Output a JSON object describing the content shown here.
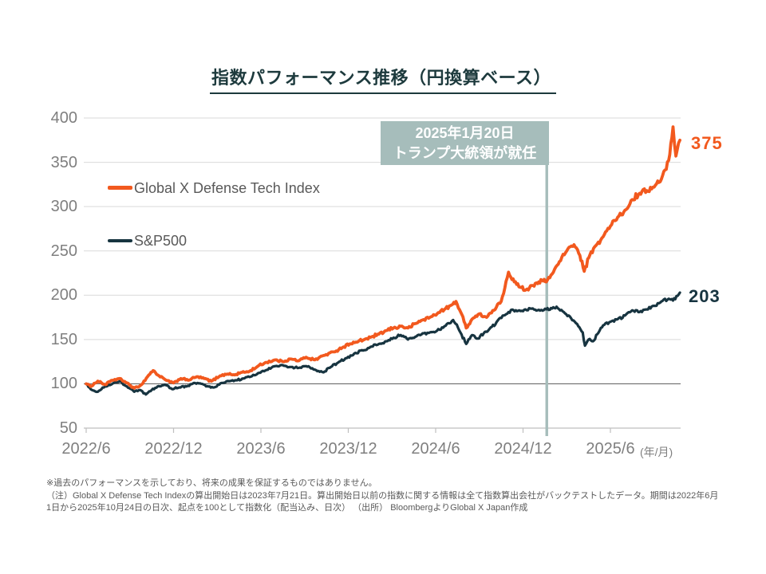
{
  "title": {
    "text": "指数パフォーマンス推移（円換算ベース）"
  },
  "legend": {
    "items": [
      {
        "label": "Global X Defense Tech Index",
        "color": "#F2591E"
      },
      {
        "label": "S&P500",
        "color": "#173440"
      }
    ]
  },
  "annotation": {
    "line1": "2025年1月20日",
    "line2": "トランプ大統領が就任"
  },
  "x_axis_unit": "(年/月)",
  "footnotes": [
    "※過去のパフォーマンスを示しており、将来の成果を保証するものではありません。",
    "（注）Global X Defense Tech Indexの算出開始日は2023年7月21日。算出開始日以前の指数に関する情報は全て指数算出会社がバックテストしたデータ。期間は2022年6月",
    "1日から2025年10月24日の日次、起点を100として指数化（配当込み、日次） （出所） BloombergよりGlobal X Japan作成"
  ],
  "colors": {
    "accent_orange": "#F2591E",
    "navy": "#173440",
    "title_teal": "#1D3A3D",
    "annotation_bg": "#A6BDBB",
    "gridline": "#D9D9D9",
    "axis": "#BFBFBF",
    "baseline": "#6B6B6B",
    "tick_label": "#7F7F7F",
    "text_gray": "#595959"
  },
  "chart_data": {
    "type": "line",
    "title": "指数パフォーマンス推移（円換算ベース）",
    "x_unit": "months since 2022/6 (daily series, 2022/6/1 - 2025/10/24, indexed to 100)",
    "x_ticks": [
      {
        "t": 0,
        "label": "2022/6"
      },
      {
        "t": 6,
        "label": "2022/12"
      },
      {
        "t": 12,
        "label": "2023/6"
      },
      {
        "t": 18,
        "label": "2023/12"
      },
      {
        "t": 24,
        "label": "2024/6"
      },
      {
        "t": 30,
        "label": "2024/12"
      },
      {
        "t": 36,
        "label": "2025/6"
      }
    ],
    "ylim": [
      50,
      400
    ],
    "yticks": [
      400,
      350,
      300,
      250,
      200,
      150,
      100,
      50
    ],
    "baseline_value": 100,
    "grid": true,
    "legend_position": "inside-top-left",
    "event_line": {
      "t": 31.63,
      "date": "2025/1/20",
      "label": "2025年1月20日 トランプ大統領が就任"
    },
    "series": [
      {
        "name": "Global X Defense Tech Index",
        "color": "#F2591E",
        "end_label": "375",
        "points": [
          [
            0,
            100
          ],
          [
            0.3,
            97
          ],
          [
            0.8,
            103
          ],
          [
            1.3,
            99
          ],
          [
            1.8,
            104
          ],
          [
            2.3,
            106
          ],
          [
            2.8,
            101
          ],
          [
            3.3,
            95
          ],
          [
            3.8,
            99
          ],
          [
            4.3,
            110
          ],
          [
            4.6,
            115
          ],
          [
            5.0,
            109
          ],
          [
            5.5,
            104
          ],
          [
            6.0,
            101
          ],
          [
            6.5,
            106
          ],
          [
            7.0,
            104
          ],
          [
            7.6,
            108
          ],
          [
            8.1,
            106
          ],
          [
            8.6,
            103
          ],
          [
            9.2,
            109
          ],
          [
            9.7,
            111
          ],
          [
            10.2,
            110
          ],
          [
            10.7,
            113
          ],
          [
            11.2,
            114
          ],
          [
            11.8,
            120
          ],
          [
            12.3,
            124
          ],
          [
            13.0,
            127
          ],
          [
            13.5,
            125
          ],
          [
            14.0,
            128
          ],
          [
            14.6,
            126
          ],
          [
            15.1,
            130
          ],
          [
            15.7,
            127
          ],
          [
            16.3,
            132
          ],
          [
            17.0,
            136
          ],
          [
            17.6,
            141
          ],
          [
            18.1,
            145
          ],
          [
            18.6,
            147
          ],
          [
            19.1,
            150
          ],
          [
            19.6,
            153
          ],
          [
            20.1,
            156
          ],
          [
            20.6,
            160
          ],
          [
            21.1,
            163
          ],
          [
            21.6,
            165
          ],
          [
            22.1,
            163
          ],
          [
            22.6,
            168
          ],
          [
            23.1,
            172
          ],
          [
            23.6,
            175
          ],
          [
            24.1,
            179
          ],
          [
            24.6,
            184
          ],
          [
            25.1,
            189
          ],
          [
            25.4,
            193
          ],
          [
            25.8,
            178
          ],
          [
            26.1,
            163
          ],
          [
            26.5,
            173
          ],
          [
            27.0,
            179
          ],
          [
            27.5,
            175
          ],
          [
            28.0,
            183
          ],
          [
            28.5,
            193
          ],
          [
            29.0,
            226
          ],
          [
            29.4,
            215
          ],
          [
            29.8,
            209
          ],
          [
            30.2,
            206
          ],
          [
            30.6,
            211
          ],
          [
            31.0,
            213
          ],
          [
            31.3,
            217
          ],
          [
            31.6,
            215
          ],
          [
            32.0,
            224
          ],
          [
            32.5,
            238
          ],
          [
            33.0,
            250
          ],
          [
            33.5,
            257
          ],
          [
            33.9,
            245
          ],
          [
            34.2,
            227
          ],
          [
            34.6,
            246
          ],
          [
            35.0,
            256
          ],
          [
            35.5,
            266
          ],
          [
            36.0,
            278
          ],
          [
            36.5,
            288
          ],
          [
            37.0,
            296
          ],
          [
            37.5,
            308
          ],
          [
            38.0,
            315
          ],
          [
            38.5,
            318
          ],
          [
            39.0,
            322
          ],
          [
            39.5,
            331
          ],
          [
            40.0,
            352
          ],
          [
            40.3,
            390
          ],
          [
            40.5,
            357
          ],
          [
            40.77,
            375
          ]
        ]
      },
      {
        "name": "S&P500",
        "color": "#173440",
        "end_label": "203",
        "points": [
          [
            0,
            100
          ],
          [
            0.4,
            93
          ],
          [
            0.8,
            91
          ],
          [
            1.3,
            97
          ],
          [
            1.8,
            100
          ],
          [
            2.3,
            103
          ],
          [
            2.8,
            97
          ],
          [
            3.3,
            91
          ],
          [
            3.7,
            93
          ],
          [
            4.1,
            88
          ],
          [
            4.5,
            93
          ],
          [
            4.9,
            97
          ],
          [
            5.4,
            99
          ],
          [
            5.9,
            94
          ],
          [
            6.4,
            96
          ],
          [
            6.9,
            97
          ],
          [
            7.4,
            101
          ],
          [
            7.9,
            100
          ],
          [
            8.4,
            97
          ],
          [
            8.8,
            96
          ],
          [
            9.3,
            101
          ],
          [
            9.8,
            103
          ],
          [
            10.3,
            104
          ],
          [
            10.8,
            106
          ],
          [
            11.3,
            108
          ],
          [
            11.8,
            112
          ],
          [
            12.3,
            115
          ],
          [
            13.0,
            120
          ],
          [
            13.5,
            121
          ],
          [
            14.0,
            119
          ],
          [
            14.6,
            118
          ],
          [
            15.1,
            120
          ],
          [
            15.7,
            116
          ],
          [
            16.3,
            113
          ],
          [
            16.8,
            119
          ],
          [
            17.3,
            124
          ],
          [
            17.9,
            129
          ],
          [
            18.4,
            134
          ],
          [
            19.1,
            138
          ],
          [
            19.6,
            142
          ],
          [
            20.1,
            145
          ],
          [
            20.6,
            148
          ],
          [
            21.1,
            152
          ],
          [
            21.6,
            155
          ],
          [
            22.1,
            150
          ],
          [
            22.6,
            153
          ],
          [
            23.1,
            157
          ],
          [
            23.6,
            158
          ],
          [
            24.1,
            160
          ],
          [
            24.6,
            165
          ],
          [
            25.2,
            172
          ],
          [
            25.7,
            158
          ],
          [
            26.1,
            145
          ],
          [
            26.5,
            155
          ],
          [
            26.9,
            151
          ],
          [
            27.3,
            157
          ],
          [
            27.7,
            162
          ],
          [
            28.1,
            167
          ],
          [
            28.6,
            177
          ],
          [
            29.0,
            181
          ],
          [
            29.5,
            183
          ],
          [
            30.0,
            182
          ],
          [
            30.5,
            185
          ],
          [
            31.0,
            183
          ],
          [
            31.6,
            184
          ],
          [
            32.0,
            185
          ],
          [
            32.3,
            187
          ],
          [
            32.8,
            181
          ],
          [
            33.3,
            174
          ],
          [
            33.8,
            165
          ],
          [
            34.1,
            158
          ],
          [
            34.25,
            143
          ],
          [
            34.5,
            150
          ],
          [
            34.8,
            148
          ],
          [
            35.1,
            156
          ],
          [
            35.5,
            166
          ],
          [
            36.0,
            170
          ],
          [
            36.5,
            173
          ],
          [
            37.0,
            177
          ],
          [
            37.5,
            183
          ],
          [
            38.0,
            181
          ],
          [
            38.5,
            184
          ],
          [
            39.0,
            188
          ],
          [
            39.5,
            193
          ],
          [
            40.0,
            196
          ],
          [
            40.3,
            194
          ],
          [
            40.77,
            203
          ]
        ]
      }
    ]
  }
}
